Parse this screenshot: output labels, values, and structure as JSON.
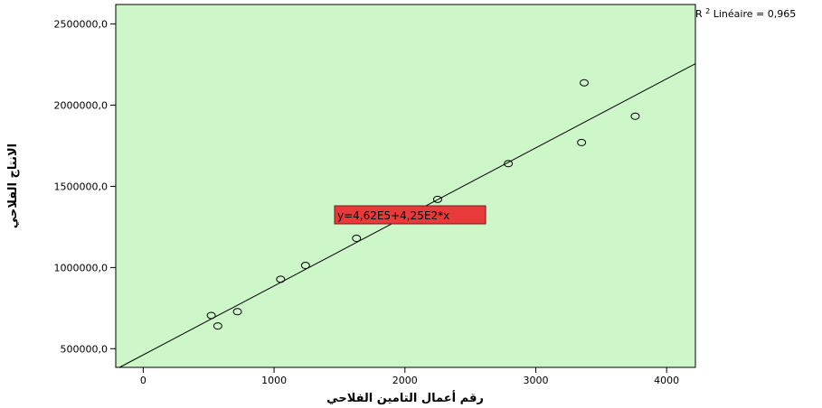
{
  "chart_data": {
    "type": "scatter",
    "xlabel": "رقم أعمال التامين الفلاحي",
    "ylabel": "الانتاج الفلاحي",
    "xlim": [
      -210,
      4220
    ],
    "ylim": [
      385000,
      2620000
    ],
    "x_ticks": [
      0,
      1000,
      2000,
      3000,
      4000
    ],
    "x_tick_labels": [
      "0",
      "1000",
      "2000",
      "3000",
      "4000"
    ],
    "y_ticks": [
      500000,
      1000000,
      1500000,
      2000000,
      2500000
    ],
    "y_tick_labels": [
      "500000,0",
      "1000000,0",
      "1500000,0",
      "2000000,0",
      "2500000,0"
    ],
    "points": [
      {
        "x": 520,
        "y": 705000
      },
      {
        "x": 570,
        "y": 640000
      },
      {
        "x": 720,
        "y": 728000
      },
      {
        "x": 1050,
        "y": 928000
      },
      {
        "x": 1240,
        "y": 1013000
      },
      {
        "x": 1630,
        "y": 1180000
      },
      {
        "x": 2250,
        "y": 1420000
      },
      {
        "x": 2790,
        "y": 1640000
      },
      {
        "x": 3350,
        "y": 1770000
      },
      {
        "x": 3370,
        "y": 2138000
      },
      {
        "x": 3760,
        "y": 1932000
      }
    ],
    "fit": {
      "intercept": 462000,
      "slope": 425
    },
    "equation_label": "y=4,62E5+4,25E2*x",
    "r2_prefix": "R",
    "r2_sup": "2",
    "r2_text": " Linéaire = 0,965",
    "grid": false,
    "colors": {
      "plot_background": "#cdf7c9",
      "marker_stroke": "#000000",
      "fit_line": "#000000",
      "equation_box": "#e83a3a"
    }
  }
}
